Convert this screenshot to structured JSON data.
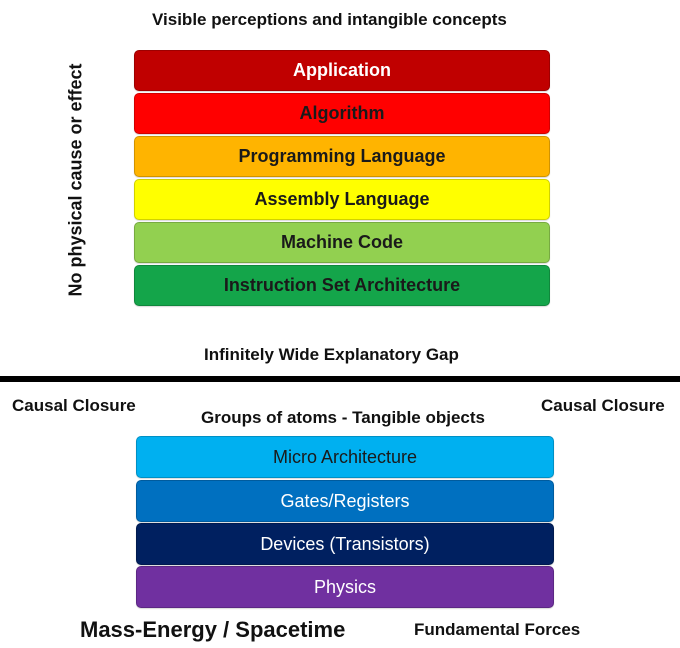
{
  "top_caption": "Visible perceptions and intangible concepts",
  "vertical_label": "No physical cause or effect",
  "upper_stack": [
    {
      "label": "Application",
      "color": "#c00000",
      "text_color": "#ffffff"
    },
    {
      "label": "Algorithm",
      "color": "#ff0000",
      "text_color": "#1a1a1a"
    },
    {
      "label": "Programming Language",
      "color": "#ffb400",
      "text_color": "#1a1a1a"
    },
    {
      "label": "Assembly Language",
      "color": "#ffff00",
      "text_color": "#1a1a1a"
    },
    {
      "label": "Machine Code",
      "color": "#92d050",
      "text_color": "#1a1a1a"
    },
    {
      "label": "Instruction Set Architecture",
      "color": "#14a54a",
      "text_color": "#1a1a1a"
    }
  ],
  "gap_label": "Infinitely Wide Explanatory Gap",
  "left_side_label": "Causal Closure",
  "right_side_label": "Causal Closure",
  "lower_caption": "Groups of atoms - Tangible objects",
  "lower_stack": [
    {
      "label": "Micro Architecture",
      "color": "#00b0f0",
      "text_color": "#1a1a1a"
    },
    {
      "label": "Gates/Registers",
      "color": "#0070c0",
      "text_color": "#ffffff"
    },
    {
      "label": "Devices (Transistors)",
      "color": "#002060",
      "text_color": "#ffffff"
    },
    {
      "label": "Physics",
      "color": "#7030a0",
      "text_color": "#ffffff"
    }
  ],
  "bottom_left_label": "Mass-Energy / Spacetime",
  "bottom_right_label": "Fundamental Forces"
}
